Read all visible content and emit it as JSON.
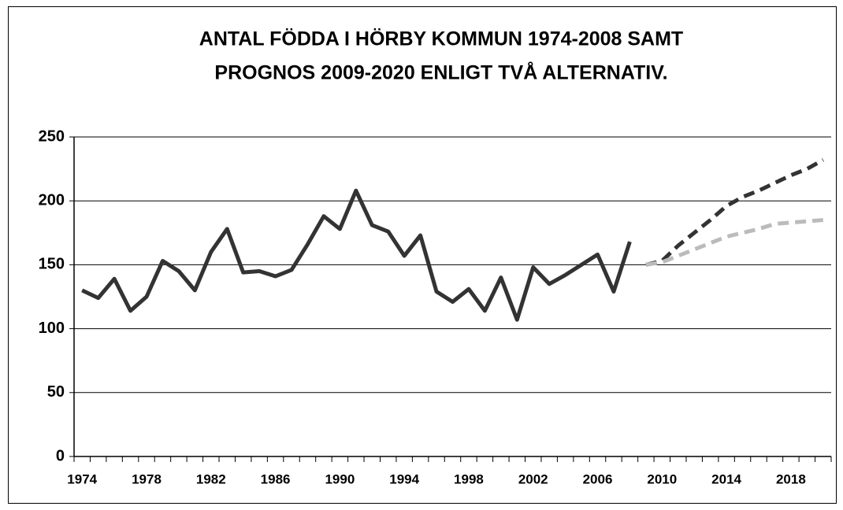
{
  "chart_data": {
    "type": "line",
    "title": [
      "ANTAL FÖDDA I HÖRBY KOMMUN 1974-2008 SAMT",
      "PROGNOS 2009-2020 ENLIGT TVÅ ALTERNATIV."
    ],
    "x": [
      1974,
      1975,
      1976,
      1977,
      1978,
      1979,
      1980,
      1981,
      1982,
      1983,
      1984,
      1985,
      1986,
      1987,
      1988,
      1989,
      1990,
      1991,
      1992,
      1993,
      1994,
      1995,
      1996,
      1997,
      1998,
      1999,
      2000,
      2001,
      2002,
      2003,
      2004,
      2005,
      2006,
      2007,
      2008,
      2009,
      2010,
      2011,
      2012,
      2013,
      2014,
      2015,
      2016,
      2017,
      2018,
      2019,
      2020
    ],
    "series": [
      {
        "color": "#333333",
        "dash": false,
        "values": [
          130,
          124,
          139,
          114,
          125,
          153,
          145,
          130,
          160,
          178,
          144,
          145,
          141,
          146,
          166,
          188,
          178,
          208,
          181,
          176,
          157,
          173,
          129,
          121,
          131,
          114,
          140,
          107,
          148,
          135,
          142,
          150,
          158,
          129,
          168,
          null,
          null,
          null,
          null,
          null,
          null,
          null,
          null,
          null,
          null,
          null,
          null
        ]
      },
      {
        "color": "#333333",
        "dash": true,
        "values": [
          null,
          null,
          null,
          null,
          null,
          null,
          null,
          null,
          null,
          null,
          null,
          null,
          null,
          null,
          null,
          null,
          null,
          null,
          null,
          null,
          null,
          null,
          null,
          null,
          null,
          null,
          null,
          null,
          null,
          null,
          null,
          null,
          null,
          null,
          null,
          150,
          153,
          165,
          175,
          185,
          196,
          203,
          208,
          214,
          220,
          225,
          232
        ]
      },
      {
        "color": "#bbbbbb",
        "dash": true,
        "values": [
          null,
          null,
          null,
          null,
          null,
          null,
          null,
          null,
          null,
          null,
          null,
          null,
          null,
          null,
          null,
          null,
          null,
          null,
          null,
          null,
          null,
          null,
          null,
          null,
          null,
          null,
          null,
          null,
          null,
          null,
          null,
          null,
          null,
          null,
          null,
          150,
          152,
          157,
          162,
          167,
          172,
          175,
          178,
          182,
          183,
          184,
          185
        ]
      }
    ],
    "xlim": [
      1973.5,
      2020.5
    ],
    "xticks": [
      1974,
      1978,
      1982,
      1986,
      1990,
      1994,
      1998,
      2002,
      2006,
      2010,
      2014,
      2018
    ],
    "ylim": [
      0,
      250
    ],
    "yticks": [
      0,
      50,
      100,
      150,
      200,
      250
    ],
    "grid": true
  }
}
